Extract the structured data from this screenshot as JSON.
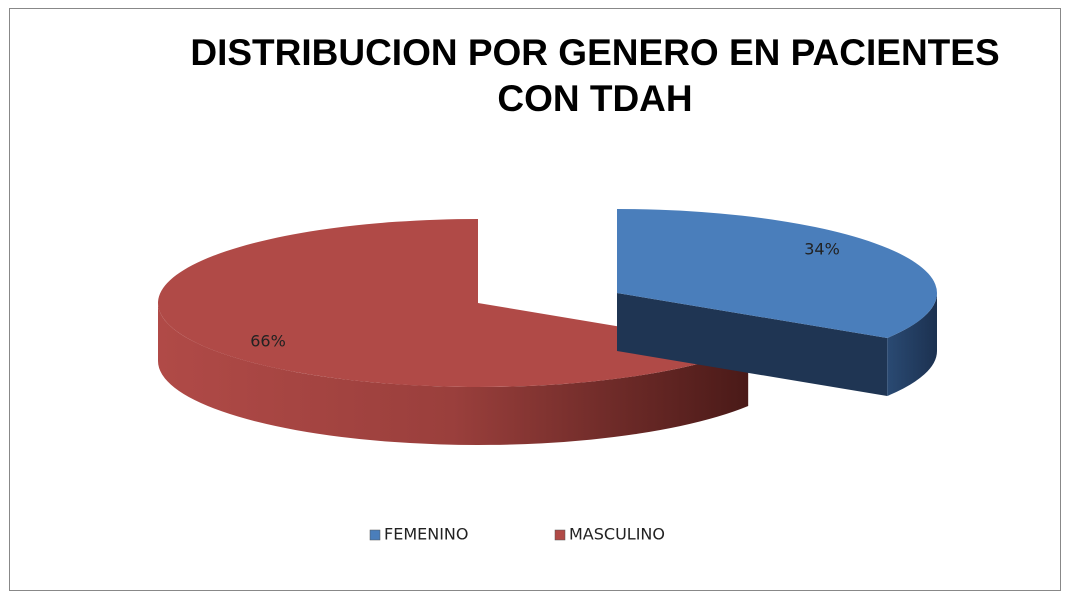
{
  "chart_data": {
    "type": "pie",
    "title": "DISTRIBUCION POR GENERO EN PACIENTES CON TDAH",
    "categories": [
      "FEMENINO",
      "MASCULINO"
    ],
    "values": [
      34,
      66
    ],
    "value_labels": [
      "34%",
      "66%"
    ],
    "colors": [
      "#4a7ebb",
      "#b04a47"
    ],
    "legend": "bottom"
  }
}
